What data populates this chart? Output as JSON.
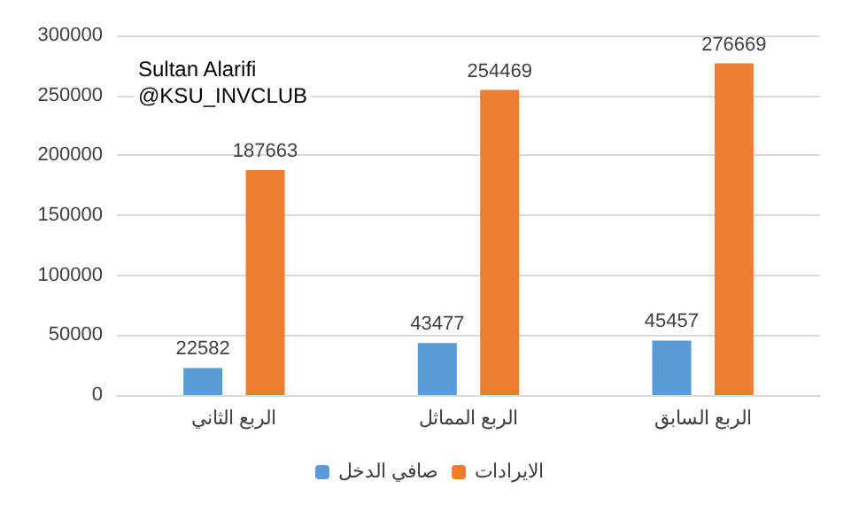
{
  "chart_data": {
    "type": "bar",
    "categories": [
      "الربع الثاني",
      "الربع المماثل",
      "الربع السابق"
    ],
    "series": [
      {
        "name": "صافي الدخل",
        "color": "#5b9bd5",
        "values": [
          22582,
          43477,
          45457
        ]
      },
      {
        "name": "الايرادات",
        "color": "#ed7d31",
        "values": [
          187663,
          254469,
          276669
        ]
      }
    ],
    "ylim": [
      0,
      300000
    ],
    "yticks": [
      0,
      50000,
      100000,
      150000,
      200000,
      250000,
      300000
    ],
    "grid": "y",
    "legend": "bottom",
    "data_labels": true,
    "annotations": [
      "Sultan Alarifi",
      "@KSU_INVCLUB"
    ]
  }
}
